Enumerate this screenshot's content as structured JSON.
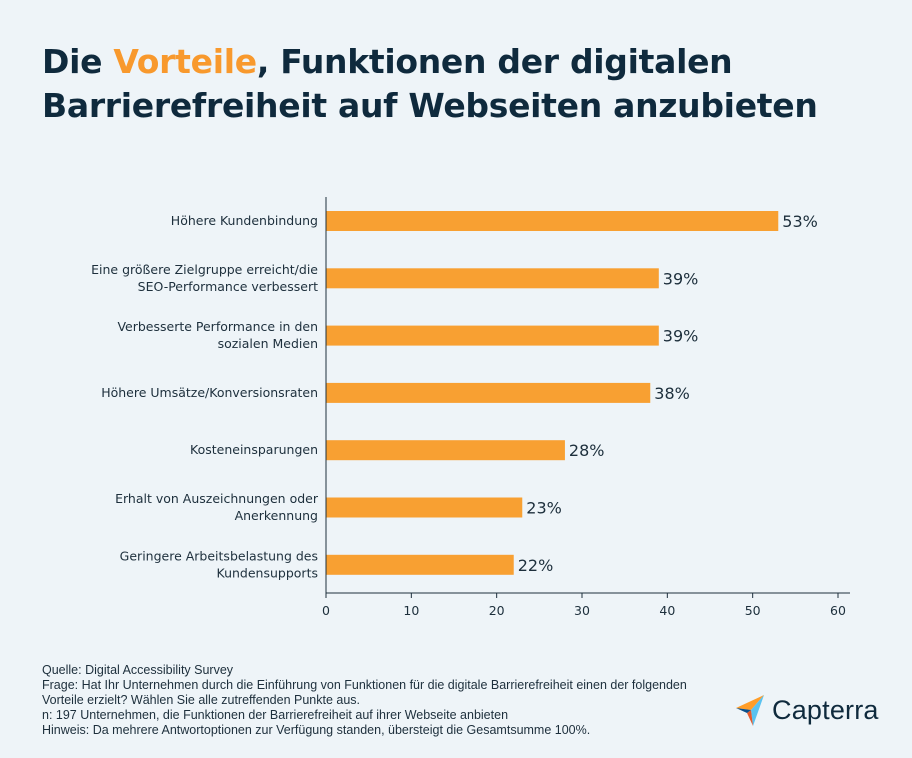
{
  "title": {
    "part1": "Die ",
    "highlight": "Vorteile",
    "part2": ", Funktionen der digitalen Barrierefreiheit auf Webseiten anzubieten"
  },
  "colors": {
    "bar": "#f8a032",
    "accent": "#f8992d",
    "title": "#0f2a3d",
    "text": "#1d2f3c",
    "background": "#eef4f8"
  },
  "chart_data": {
    "type": "bar",
    "orientation": "horizontal",
    "categories": [
      [
        "Höhere Kundenbindung"
      ],
      [
        "Eine größere Zielgruppe erreicht/die",
        "SEO-Performance verbessert"
      ],
      [
        "Verbesserte Performance in den",
        "sozialen Medien"
      ],
      [
        "Höhere Umsätze/Konversionsraten"
      ],
      [
        "Kosteneinsparungen"
      ],
      [
        "Erhalt von Auszeichnungen oder",
        "Anerkennung"
      ],
      [
        "Geringere Arbeitsbelastung des",
        "Kundensupports"
      ]
    ],
    "values": [
      53,
      39,
      39,
      38,
      28,
      23,
      22
    ],
    "data_labels": [
      "53%",
      "39%",
      "39%",
      "38%",
      "28%",
      "23%",
      "22%"
    ],
    "xlim": [
      0,
      60
    ],
    "xticks": [
      0,
      10,
      20,
      30,
      40,
      50,
      60
    ],
    "grid": false
  },
  "footer": {
    "source": "Quelle: Digital Accessibility Survey",
    "question_line1": "Frage: Hat Ihr Unternehmen durch die Einführung von Funktionen für die digitale Barrierefreiheit einen der folgenden",
    "question_line2": "Vorteile erzielt? Wählen Sie alle zutreffenden Punkte aus.",
    "sample": "n: 197 Unternehmen, die Funktionen der Barrierefreiheit auf ihrer Webseite anbieten",
    "note": "Hinweis: Da mehrere Antwortoptionen zur Verfügung standen, übersteigt die Gesamtsumme 100%."
  },
  "logo": {
    "text": "Capterra",
    "icon": "capterra-arrow-icon"
  }
}
